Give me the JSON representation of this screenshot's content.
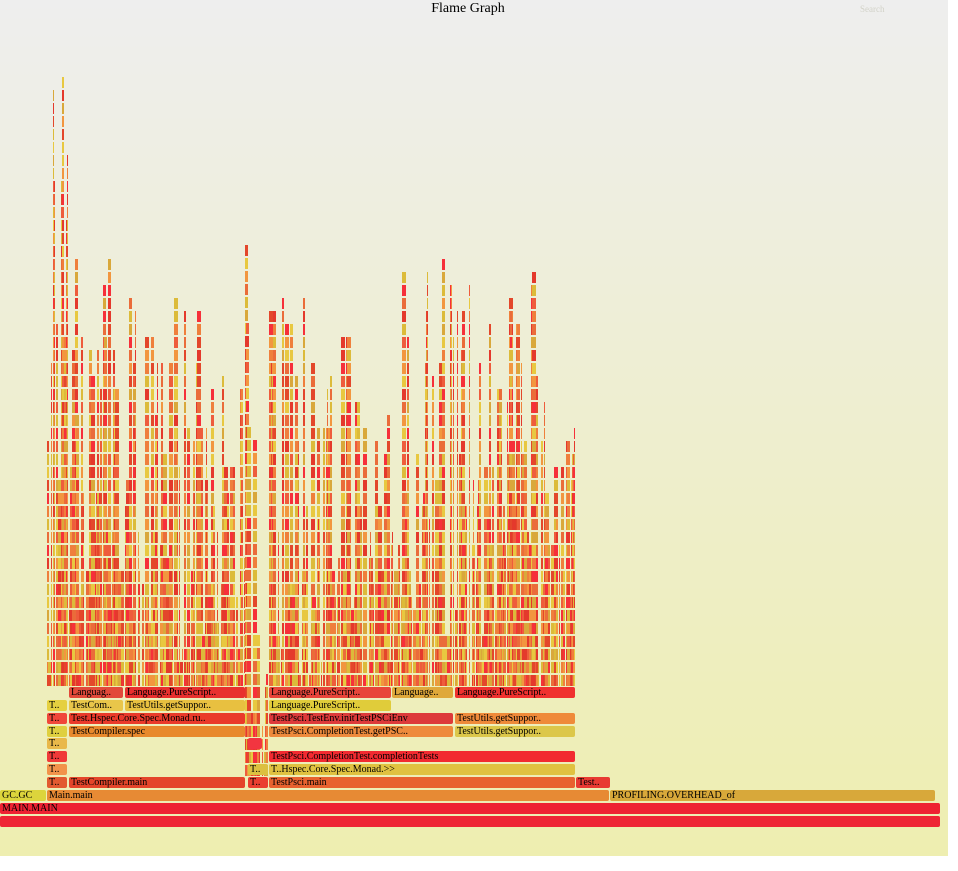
{
  "title": "Flame Graph",
  "search": {
    "label": "Search"
  },
  "colors": [
    "#ea6c3a",
    "#e3472b",
    "#ef7f3c",
    "#f2963f",
    "#dcbb3a",
    "#e8c840",
    "#f6303a",
    "#e4392c",
    "#d9a83b",
    "#ee5c3c"
  ],
  "frames": [
    {
      "label": "MAIN.MAIN",
      "c": "#ee2232"
    },
    {
      "label": "",
      "c": "#ee2535"
    },
    {
      "label": "GC.GC",
      "c": "#dcd43c"
    },
    {
      "label": "Main.main",
      "c": "#e78a34"
    },
    {
      "label": "PROFILING.OVERHEAD_of",
      "c": "#d8a83a"
    },
    {
      "label": "T..",
      "c": "#e25a30"
    },
    {
      "label": "TestCompiler.main",
      "c": "#e4452a"
    },
    {
      "label": "T..",
      "c": "#ea3f30"
    },
    {
      "label": "TestPsci.main",
      "c": "#e8622e"
    },
    {
      "label": "Test..",
      "c": "#e83a32"
    },
    {
      "label": "T..",
      "c": "#f2934a"
    },
    {
      "label": "T..",
      "c": "#dcc040"
    },
    {
      "label": "T..Hspec.Core.Spec.Monad.>>",
      "c": "#e0c240"
    },
    {
      "label": "T..",
      "c": "#f03a38"
    },
    {
      "label": "TestPsci.CompletionTest.completionTests",
      "c": "#f22a30"
    },
    {
      "label": "T..",
      "c": "#e9b84a"
    },
    {
      "label": "",
      "c": "#f23540"
    },
    {
      "label": "T..",
      "c": "#dfd040"
    },
    {
      "label": "TestCompiler.spec",
      "c": "#e8892c"
    },
    {
      "label": "TestPsci.CompletionTest.getPSC..",
      "c": "#ee8a3c"
    },
    {
      "label": "TestUtils.getSuppor..",
      "c": "#dcc74a"
    },
    {
      "label": "T..",
      "c": "#f0473a"
    },
    {
      "label": "Test.Hspec.Core.Spec.Monad.ru..",
      "c": "#ea3a2a"
    },
    {
      "label": "TestPsci.TestEnv.initTestPSCiEnv",
      "c": "#dd3a3a"
    },
    {
      "label": "TestUtils.getSuppor..",
      "c": "#ef8a3a"
    },
    {
      "label": "T..",
      "c": "#e5d040"
    },
    {
      "label": "TestCom..",
      "c": "#e9c64a"
    },
    {
      "label": "TestUtils.getSuppor..",
      "c": "#e8c040"
    },
    {
      "label": "Language.PureScript..",
      "c": "#e0cc3a"
    },
    {
      "label": "Languag..",
      "c": "#e24a3a"
    },
    {
      "label": "Language.PureScript..",
      "c": "#e8302e"
    },
    {
      "label": "Language.PureScript..",
      "c": "#e8453a"
    },
    {
      "label": "Language..",
      "c": "#dfa83a"
    },
    {
      "label": "Language.PureScript..",
      "c": "#f0312f"
    }
  ]
}
